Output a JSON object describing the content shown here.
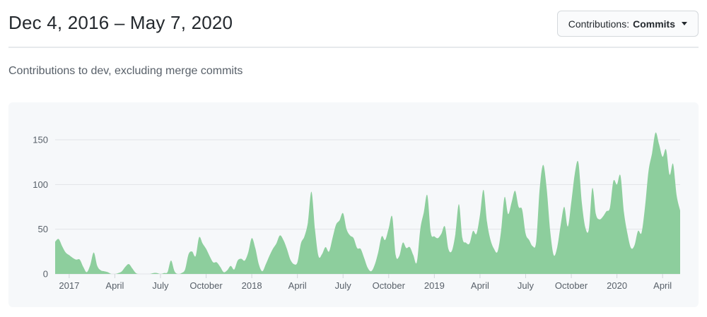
{
  "header": {
    "title": "Dec 4, 2016 – May 7, 2020",
    "dropdown": {
      "label_prefix": "Contributions:",
      "selected": "Commits",
      "icon": "chevron-down-icon"
    }
  },
  "subtitle": "Contributions to dev, excluding merge commits",
  "colors": {
    "area_green": "#8dce9d",
    "panel_bg": "#f6f8fa",
    "gridline": "#e1e4e8",
    "tick_mark": "#d1d5da",
    "axis_text": "#586069",
    "title_text": "#24292e",
    "muted_text": "#586069",
    "button_bg": "#fafbfc",
    "button_border": "#d4d8dc"
  },
  "chart_data": {
    "type": "area",
    "title": "Contributions to dev, excluding merge commits",
    "series_name": "Commits",
    "x_start_label": "Dec 4, 2016",
    "x_end_label": "May 7, 2020",
    "x_unit": "week",
    "ylim": [
      0,
      150
    ],
    "y_ticks": [
      0,
      50,
      100,
      150
    ],
    "grid": true,
    "legend": "none",
    "x_ticks": [
      {
        "label": "2017",
        "week": 4
      },
      {
        "label": "April",
        "week": 17
      },
      {
        "label": "July",
        "week": 30
      },
      {
        "label": "October",
        "week": 43
      },
      {
        "label": "2018",
        "week": 56
      },
      {
        "label": "April",
        "week": 69
      },
      {
        "label": "July",
        "week": 82
      },
      {
        "label": "October",
        "week": 95
      },
      {
        "label": "2019",
        "week": 108
      },
      {
        "label": "April",
        "week": 121
      },
      {
        "label": "July",
        "week": 134
      },
      {
        "label": "October",
        "week": 147
      },
      {
        "label": "2020",
        "week": 160
      },
      {
        "label": "April",
        "week": 173
      }
    ],
    "values": [
      36,
      39,
      31,
      24,
      21,
      18,
      16,
      16,
      8,
      2,
      10,
      24,
      9,
      4,
      3,
      2,
      0,
      0,
      1,
      3,
      8,
      11,
      6,
      1,
      0,
      0,
      0,
      0,
      1,
      1,
      0,
      1,
      2,
      15,
      3,
      0,
      1,
      5,
      22,
      25,
      20,
      41,
      34,
      28,
      20,
      13,
      13,
      8,
      2,
      4,
      9,
      5,
      15,
      17,
      15,
      24,
      40,
      29,
      11,
      3,
      11,
      20,
      28,
      34,
      43,
      38,
      28,
      16,
      11,
      13,
      34,
      42,
      58,
      92,
      50,
      20,
      22,
      30,
      25,
      40,
      55,
      60,
      68,
      50,
      43,
      40,
      29,
      28,
      18,
      7,
      3,
      10,
      24,
      42,
      38,
      51,
      64,
      21,
      20,
      35,
      29,
      30,
      21,
      13,
      50,
      69,
      88,
      46,
      42,
      40,
      45,
      53,
      28,
      26,
      45,
      78,
      40,
      35,
      34,
      48,
      45,
      66,
      94,
      58,
      38,
      28,
      25,
      48,
      86,
      67,
      80,
      93,
      75,
      72,
      45,
      38,
      31,
      36,
      95,
      122,
      95,
      48,
      21,
      30,
      55,
      75,
      53,
      80,
      112,
      125,
      80,
      52,
      50,
      96,
      67,
      61,
      64,
      70,
      74,
      104,
      100,
      110,
      69,
      45,
      29,
      32,
      48,
      46,
      75,
      115,
      135,
      158,
      145,
      131,
      139,
      111,
      123,
      88,
      71
    ]
  }
}
